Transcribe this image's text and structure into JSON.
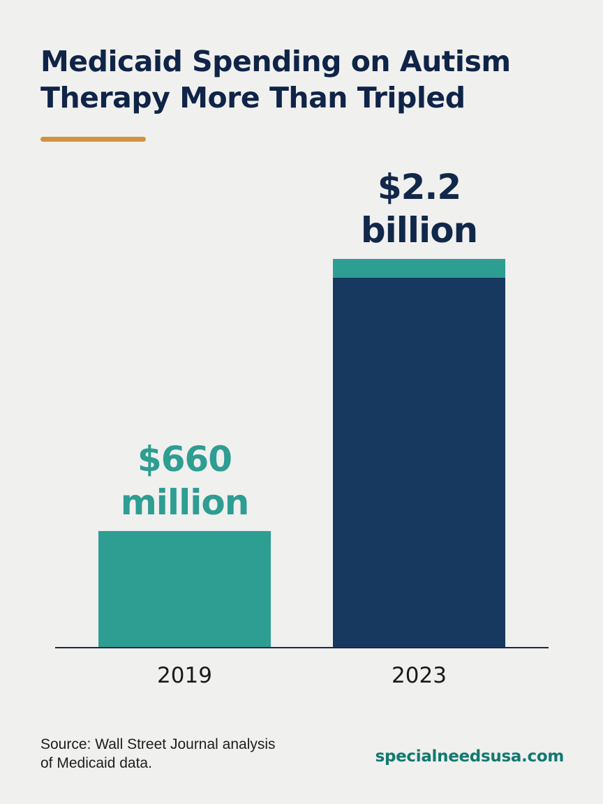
{
  "title": {
    "line1": "Medicaid Spending on Autism",
    "line2": "Therapy More Than Tripled"
  },
  "colors": {
    "title": "#0f2447",
    "accent_rule": "#d4913e",
    "teal": "#2e9d92",
    "navy": "#18395f",
    "navy_label": "#12284a",
    "baseline": "#1b2740",
    "site": "#11796f"
  },
  "chart_data": {
    "type": "bar",
    "categories": [
      "2019",
      "2023"
    ],
    "values": [
      660000000,
      2200000000
    ],
    "unit": "USD",
    "value_labels": [
      [
        "$660",
        "million"
      ],
      [
        "$2.2",
        "billion"
      ]
    ],
    "bar_colors": [
      "#2e9d92",
      "#18395f"
    ],
    "cap_colors": [
      null,
      "#2e9d92"
    ],
    "label_colors": [
      "#2e9d92",
      "#12284a"
    ],
    "ylim": [
      0,
      2200000000
    ],
    "title": "Medicaid Spending on Autism Therapy More Than Tripled",
    "xlabel": "",
    "ylabel": "",
    "grid": false,
    "legend": "none"
  },
  "source": {
    "line1": "Source: Wall Street Journal analysis",
    "line2": "of Medicaid data."
  },
  "site": "specialneedsusa.com"
}
